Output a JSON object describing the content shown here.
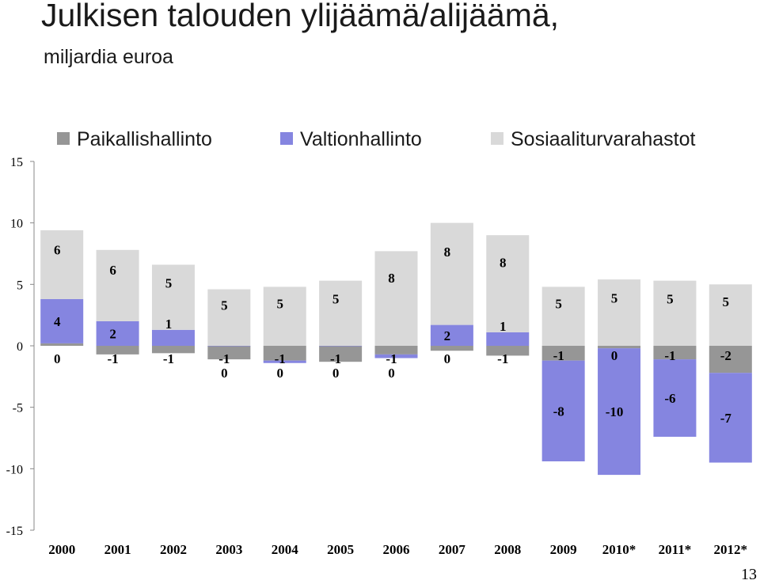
{
  "page": {
    "title": "Julkisen talouden ylijäämä/alijäämä,",
    "subtitle": "miljardia euroa",
    "page_number": "13"
  },
  "chart_data": {
    "type": "bar",
    "stacked": true,
    "title": "Julkisen talouden ylijäämä/alijäämä,",
    "subtitle": "miljardia euroa",
    "xlabel": "",
    "ylabel": "",
    "ylim": [
      -15,
      15
    ],
    "yticks": [
      15,
      10,
      5,
      0,
      -5,
      -10,
      -15
    ],
    "grid": false,
    "legend_position": "top",
    "categories": [
      "2000",
      "2001",
      "2002",
      "2003",
      "2004",
      "2005",
      "2006",
      "2007",
      "2008",
      "2009",
      "2010*",
      "2011*",
      "2012*"
    ],
    "series": [
      {
        "name": "Paikallishallinto",
        "color": "#969696",
        "values": [
          0.2,
          -0.7,
          -0.6,
          -1.1,
          -1.2,
          -1.3,
          -0.7,
          -0.4,
          -0.8,
          -1.2,
          -0.2,
          -1.1,
          -2.2
        ],
        "labels": [
          "0",
          "-1",
          "-1",
          "-1",
          "-1",
          "-1",
          "-1",
          "0",
          "-1",
          "-1",
          "0",
          "-1",
          "-2"
        ]
      },
      {
        "name": "Valtionhallinto",
        "color": "#8585e0",
        "values": [
          3.6,
          2.0,
          1.3,
          0.0,
          -0.2,
          0.0,
          -0.3,
          1.7,
          1.1,
          -8.2,
          -10.3,
          -6.3,
          -7.3
        ],
        "labels": [
          "4",
          "2",
          "1",
          "0",
          "0",
          "0",
          "0",
          "2",
          "1",
          "-8",
          "-10",
          "-6",
          "-7"
        ]
      },
      {
        "name": "Sosiaaliturvarahastot",
        "color": "#d9d9d9",
        "values": [
          5.6,
          5.8,
          5.3,
          4.6,
          4.8,
          5.3,
          7.7,
          8.3,
          7.9,
          4.8,
          5.4,
          5.3,
          5.0
        ],
        "labels": [
          "6",
          "6",
          "5",
          "5",
          "5",
          "5",
          "8",
          "8",
          "8",
          "5",
          "5",
          "5",
          "5"
        ]
      }
    ]
  }
}
